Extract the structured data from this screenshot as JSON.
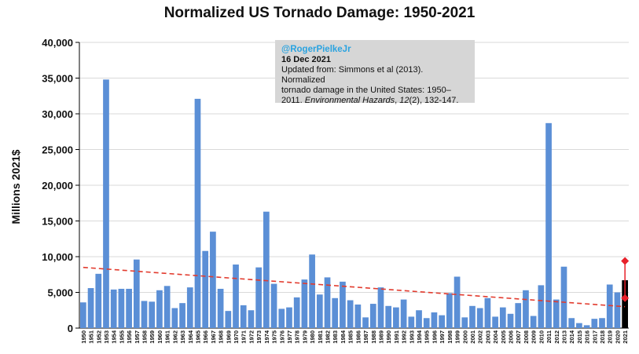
{
  "chart_data": {
    "type": "bar",
    "title": "Normalized US Tornado Damage: 1950-2021",
    "ylabel": "Millions 2021$",
    "xlabel": "",
    "ylim": [
      0,
      40000
    ],
    "yticks": [
      "0",
      "5,000",
      "10,000",
      "15,000",
      "20,000",
      "25,000",
      "30,000",
      "35,000",
      "40,000"
    ],
    "categories": [
      "1950",
      "1951",
      "1952",
      "1953",
      "1954",
      "1955",
      "1956",
      "1957",
      "1958",
      "1959",
      "1960",
      "1961",
      "1962",
      "1963",
      "1964",
      "1965",
      "1966",
      "1967",
      "1968",
      "1969",
      "1970",
      "1971",
      "1972",
      "1973",
      "1974",
      "1975",
      "1976",
      "1977",
      "1978",
      "1979",
      "1980",
      "1981",
      "1982",
      "1983",
      "1984",
      "1985",
      "1986",
      "1987",
      "1988",
      "1989",
      "1990",
      "1991",
      "1992",
      "1993",
      "1994",
      "1995",
      "1996",
      "1997",
      "1998",
      "1999",
      "2000",
      "2001",
      "2002",
      "2003",
      "2004",
      "2005",
      "2006",
      "2007",
      "2008",
      "2009",
      "2010",
      "2011",
      "2012",
      "2013",
      "2014",
      "2015",
      "2016",
      "2017",
      "2018",
      "2019",
      "2020",
      "2021"
    ],
    "values": [
      3600,
      5600,
      7600,
      34800,
      5400,
      5500,
      5500,
      9600,
      3800,
      3700,
      5300,
      5900,
      2800,
      3500,
      5700,
      32100,
      10800,
      13500,
      5500,
      2400,
      8900,
      3200,
      2500,
      8500,
      16300,
      6200,
      2700,
      2900,
      4300,
      6800,
      10300,
      4700,
      7100,
      4200,
      6500,
      3900,
      3300,
      1500,
      3400,
      5700,
      3100,
      2900,
      4000,
      1600,
      2500,
      1400,
      2200,
      1800,
      4900,
      7200,
      1500,
      3100,
      2800,
      4200,
      1600,
      2900,
      2000,
      3500,
      5300,
      1700,
      6000,
      28700,
      4000,
      8600,
      1400,
      700,
      400,
      1300,
      1400,
      6100,
      5000,
      6700
    ],
    "highlight_category": "2021",
    "highlight_range": [
      4200,
      9400
    ],
    "trend": {
      "start": 8500,
      "end": 3000
    },
    "colors": {
      "bar": "#5b8fd6",
      "highlight_bar": "#000000",
      "trend": "#e23b2e",
      "range_marker": "#e8202a"
    }
  },
  "annotation": {
    "handle": "@RogerPielkeJr",
    "date": "16 Dec 2021",
    "line1": "Updated from: Simmons et al (2013). Normalized",
    "line2": "tornado damage in the United States: 1950–",
    "line3_pre": "2011. ",
    "line3_journal": "Environmental Hazards",
    "line3_mid": ", ",
    "line3_vol": "12",
    "line3_post": "(2), 132-147."
  }
}
